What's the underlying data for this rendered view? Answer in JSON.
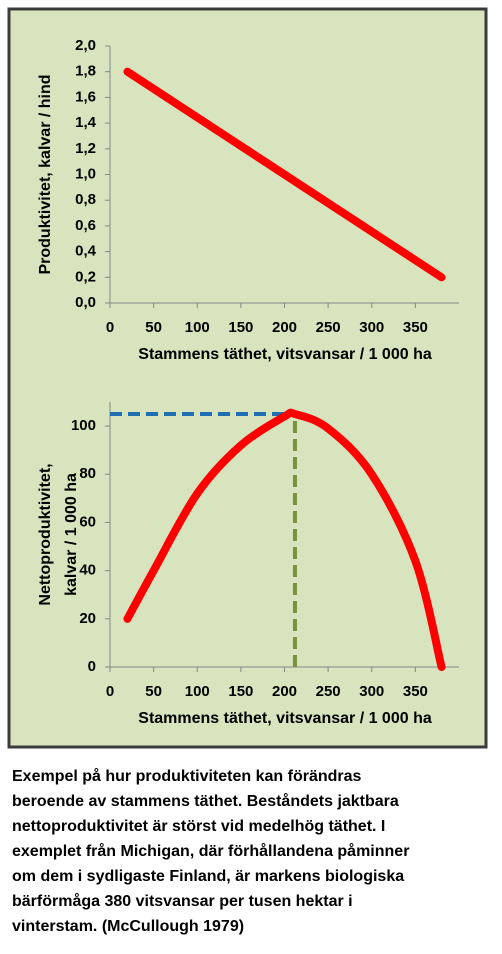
{
  "chart_data": [
    {
      "type": "line",
      "x_label": "Stammens täthet, vitsvansar / 1 000 ha",
      "y_label": "Produktivitet, kalvar / hind",
      "x": [
        20,
        380
      ],
      "series": [
        {
          "color": "#ff0000",
          "values": [
            1.8,
            0.2
          ]
        }
      ],
      "xlim": [
        0,
        400
      ],
      "xticks": [
        0,
        50,
        100,
        150,
        200,
        250,
        300,
        350
      ],
      "ylim": [
        0,
        2
      ],
      "yticks": [
        {
          "value": 0,
          "label": "0,0"
        },
        {
          "value": 0.2,
          "label": "0,2"
        },
        {
          "value": 0.4,
          "label": "0,4"
        },
        {
          "value": 0.6,
          "label": "0,6"
        },
        {
          "value": 0.8,
          "label": "0,8"
        },
        {
          "value": 1,
          "label": "1,0"
        },
        {
          "value": 1.2,
          "label": "1,2"
        },
        {
          "value": 1.4,
          "label": "1,4"
        },
        {
          "value": 1.6,
          "label": "1,6"
        },
        {
          "value": 1.8,
          "label": "1,8"
        },
        {
          "value": 2,
          "label": "2,0"
        }
      ]
    },
    {
      "type": "line",
      "x_label": "Stammens täthet, vitsvansar / 1 000 ha",
      "y_label": [
        "Nettoproduktivitet,",
        "kalvar / 1 000 ha"
      ],
      "x": [
        20,
        50,
        100,
        150,
        200,
        212,
        250,
        300,
        350,
        380
      ],
      "series": [
        {
          "color": "#ff0000",
          "values": [
            20,
            40,
            72,
            92,
            104,
            105,
            99,
            80,
            44,
            0
          ]
        }
      ],
      "xlim": [
        0,
        400
      ],
      "xticks": [
        0,
        50,
        100,
        150,
        200,
        250,
        300,
        350
      ],
      "ylim": [
        0,
        110
      ],
      "yticks": [
        0,
        20,
        40,
        60,
        80,
        100
      ],
      "reference_lines": [
        {
          "axis": "y",
          "value": 105,
          "color": "#1f6fb5"
        },
        {
          "axis": "x",
          "value": 212,
          "color": "#77933c"
        }
      ]
    }
  ],
  "caption": [
    "Exempel på hur produktiviteten kan förändras",
    "beroende av stammens täthet. Beståndets jaktbara",
    "nettoproduktivitet är störst vid medelhög täthet. I",
    "exemplet från Michigan, där förhållandena påminner",
    "om dem i sydligaste Finland, är markens biologiska",
    "bärförmåga 380 vitsvansar per tusen hektar i",
    "vinterstam. (McCullough 1979)"
  ]
}
